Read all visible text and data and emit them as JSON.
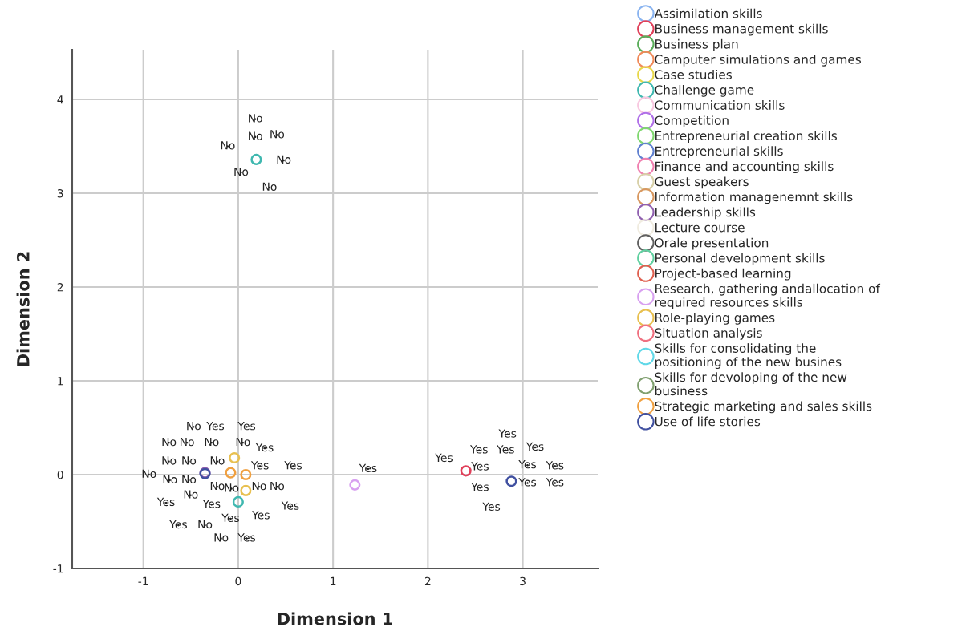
{
  "chart_data": {
    "type": "scatter",
    "xlabel": "Dimension 1",
    "ylabel": "Dimension 2",
    "xlim": [
      -1.75,
      3.79
    ],
    "ylim": [
      -1,
      4.53
    ],
    "xticks": [
      -1,
      0,
      1,
      2,
      3
    ],
    "yticks": [
      -1,
      0,
      1,
      2,
      3,
      4
    ],
    "grid": true,
    "legend": "right",
    "marker": "circle",
    "series": [
      {
        "name": "Assimilation skills",
        "color": "#8ab4f0"
      },
      {
        "name": "Business management skills",
        "color": "#e0405a",
        "x": [
          2.4
        ],
        "values": [
          0.04
        ]
      },
      {
        "name": "Business plan",
        "color": "#5aad5a"
      },
      {
        "name": "Camputer simulations and games",
        "color": "#f08a5a"
      },
      {
        "name": "Case studies",
        "color": "#e8d84a"
      },
      {
        "name": "Challenge game",
        "color": "#40b8b0",
        "x": [
          0.19,
          0.0
        ],
        "values": [
          3.36,
          -0.29
        ]
      },
      {
        "name": "Communication skills",
        "color": "#f8c8e0"
      },
      {
        "name": "Competition",
        "color": "#b070e8"
      },
      {
        "name": "Entrepreneurial creation skills",
        "color": "#80d870"
      },
      {
        "name": "Entrepreneurial skills",
        "color": "#6080d0"
      },
      {
        "name": "Finance and accounting skills",
        "color": "#f080b0"
      },
      {
        "name": "Guest speakers",
        "color": "#d8d0a8"
      },
      {
        "name": "Information managenemnt skills",
        "color": "#d89860"
      },
      {
        "name": "Leadership skills",
        "color": "#9060b0",
        "x": [
          -0.35
        ],
        "values": [
          0.02
        ]
      },
      {
        "name": "Lecture course",
        "color": "#f0ece0"
      },
      {
        "name": "Orale presentation",
        "color": "#606060"
      },
      {
        "name": "Personal development skills",
        "color": "#60d0a0"
      },
      {
        "name": "Project-based learning",
        "color": "#e06050"
      },
      {
        "name": "Research, gathering andallocation of required resources skills",
        "color": "#d8a0f0",
        "x": [
          1.23
        ],
        "values": [
          -0.11
        ]
      },
      {
        "name": "Role-playing games",
        "color": "#e8c050",
        "x": [
          -0.04,
          0.08
        ],
        "values": [
          0.18,
          -0.17
        ]
      },
      {
        "name": "Situation analysis",
        "color": "#f07080"
      },
      {
        "name": "Skills for consolidating the positioning of the new busines",
        "color": "#60d8e8"
      },
      {
        "name": "Skills for devoloping of the new business",
        "color": "#80a070"
      },
      {
        "name": "Strategic marketing and sales skills",
        "color": "#f0a040",
        "x": [
          -0.08,
          0.08
        ],
        "values": [
          0.02,
          0.0
        ]
      },
      {
        "name": "Use of life stories",
        "color": "#4050a0",
        "x": [
          2.88,
          -0.35
        ],
        "values": [
          -0.07,
          0.01
        ]
      },
      {
        "color": "#222222",
        "x": [
          0.18,
          0.18,
          0.41,
          -0.11,
          0.48,
          0.03,
          0.33,
          -0.47,
          -0.24,
          0.09,
          -0.73,
          -0.54,
          -0.28,
          0.05,
          0.28,
          -0.73,
          -0.52,
          -0.22,
          0.23,
          0.58,
          -0.94,
          -0.72,
          -0.52,
          -0.22,
          -0.07,
          0.22,
          0.41,
          -0.76,
          -0.5,
          -0.28,
          0.55,
          -0.08,
          0.24,
          -0.63,
          -0.35,
          -0.18,
          0.09,
          1.37,
          2.84,
          3.13,
          2.54,
          2.82,
          2.17,
          2.55,
          3.05,
          3.34,
          3.05,
          3.34,
          2.55,
          2.67
        ],
        "values": [
          3.79,
          3.6,
          3.62,
          3.5,
          3.35,
          3.22,
          3.06,
          0.51,
          0.51,
          0.51,
          0.34,
          0.34,
          0.34,
          0.34,
          0.28,
          0.14,
          0.14,
          0.14,
          0.09,
          0.09,
          0.0,
          -0.06,
          -0.06,
          -0.13,
          -0.15,
          -0.13,
          -0.13,
          -0.3,
          -0.22,
          -0.32,
          -0.34,
          -0.47,
          -0.44,
          -0.54,
          -0.54,
          -0.68,
          -0.68,
          0.06,
          0.43,
          0.29,
          0.26,
          0.26,
          0.17,
          0.08,
          0.1,
          0.09,
          -0.09,
          -0.09,
          -0.14,
          -0.35
        ],
        "value_labels": [
          "No",
          "No",
          "No",
          "No",
          "No",
          "No",
          "No",
          "No",
          "Yes",
          "Yes",
          "No",
          "No",
          "No",
          "No",
          "Yes",
          "No",
          "No",
          "No",
          "Yes",
          "Yes",
          "No",
          "No",
          "No",
          "No",
          "No",
          "No",
          "No",
          "Yes",
          "No",
          "Yes",
          "Yes",
          "Yes",
          "Yes",
          "Yes",
          "No",
          "No",
          "Yes",
          "Yes",
          "Yes",
          "Yes",
          "Yes",
          "Yes",
          "Yes",
          "Yes",
          "Yes",
          "Yes",
          "Yes",
          "Yes",
          "Yes",
          "Yes"
        ]
      }
    ]
  }
}
